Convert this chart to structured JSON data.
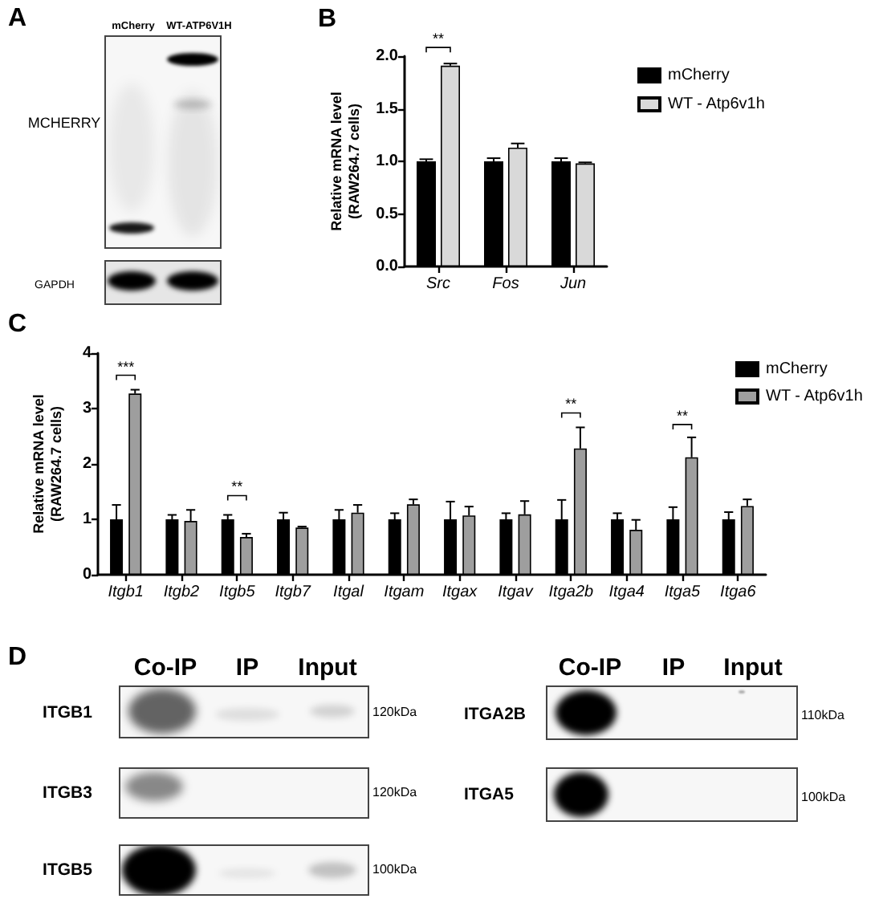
{
  "chart_data": [
    {
      "type": "other",
      "title": "A",
      "annotations": [
        "mCherry",
        "WT-ATP6V1H",
        "MCHERRY",
        "GAPDH"
      ]
    },
    {
      "type": "bar",
      "title": "B",
      "ylabel": "Relative mRNA level\n(RAW264.7 cells)",
      "categories": [
        "Src",
        "Fos",
        "Jun"
      ],
      "series": [
        {
          "name": "mCherry",
          "color": "#000000",
          "values": [
            1.0,
            1.0,
            1.0
          ],
          "errors": [
            [
              1.0,
              1.02
            ],
            [
              1.0,
              1.03
            ],
            [
              1.0,
              1.03
            ]
          ]
        },
        {
          "name": "WT - Atp6v1h",
          "color": "#d9d9d9",
          "values": [
            1.91,
            1.13,
            0.98
          ],
          "errors": [
            [
              1.91,
              1.93
            ],
            [
              1.13,
              1.17
            ],
            [
              0.98,
              0.99
            ]
          ]
        }
      ],
      "ylim": [
        0,
        2
      ],
      "yticks": [
        {
          "value": 0,
          "label": "0.0"
        },
        0.5,
        {
          "value": 1,
          "label": "1.0"
        },
        1.5,
        {
          "value": 2,
          "label": "2.0"
        }
      ],
      "legend": "top right",
      "annotations": [
        "**"
      ]
    },
    {
      "type": "bar",
      "title": "C",
      "ylabel": "Relative mRNA level\n(RAW264.7 cells)",
      "categories": [
        "Itgb1",
        "Itgb2",
        "Itgb5",
        "Itgb7",
        "Itgal",
        "Itgam",
        "Itgax",
        "Itgav",
        "Itga2b",
        "Itga4",
        "Itga5",
        "Itga6"
      ],
      "series": [
        {
          "name": "mCherry",
          "color": "#000000",
          "values": [
            1.0,
            1.0,
            1.0,
            1.0,
            1.0,
            1.0,
            1.0,
            1.0,
            1.0,
            1.0,
            1.0,
            1.0
          ],
          "errors": [
            [
              1.0,
              1.26
            ],
            [
              1.0,
              1.08
            ],
            [
              1.0,
              1.08
            ],
            [
              1.0,
              1.12
            ],
            [
              1.0,
              1.17
            ],
            [
              1.0,
              1.11
            ],
            [
              1.0,
              1.32
            ],
            [
              1.0,
              1.11
            ],
            [
              1.0,
              1.35
            ],
            [
              1.0,
              1.11
            ],
            [
              1.0,
              1.22
            ],
            [
              1.0,
              1.13
            ]
          ]
        },
        {
          "name": "WT - Atp6v1h",
          "color": "#9e9e9e",
          "values": [
            3.27,
            0.97,
            0.68,
            0.85,
            1.12,
            1.27,
            1.07,
            1.09,
            2.28,
            0.81,
            2.12,
            1.24
          ],
          "errors": [
            [
              3.27,
              3.34
            ],
            [
              0.97,
              1.17
            ],
            [
              0.68,
              0.74
            ],
            [
              0.85,
              0.87
            ],
            [
              1.12,
              1.26
            ],
            [
              1.27,
              1.36
            ],
            [
              1.07,
              1.23
            ],
            [
              1.09,
              1.33
            ],
            [
              2.28,
              2.66
            ],
            [
              0.81,
              0.99
            ],
            [
              2.12,
              2.48
            ],
            [
              1.24,
              1.36
            ]
          ]
        }
      ],
      "ylim": [
        0,
        4
      ],
      "yticks": [
        0,
        1,
        2,
        3,
        4
      ],
      "legend": "top right",
      "annotations": [
        "***",
        "**",
        "**",
        "**"
      ]
    },
    {
      "type": "other",
      "title": "D",
      "annotations": [
        "Co-IP",
        "IP",
        "Input",
        "ITGB1",
        "120kDa",
        "ITGB3",
        "120kDa",
        "ITGB5",
        "100kDa",
        "Co-IP",
        "IP",
        "Input",
        "ITGA2B",
        "110kDa",
        "ITGA5",
        "100kDa"
      ]
    }
  ]
}
